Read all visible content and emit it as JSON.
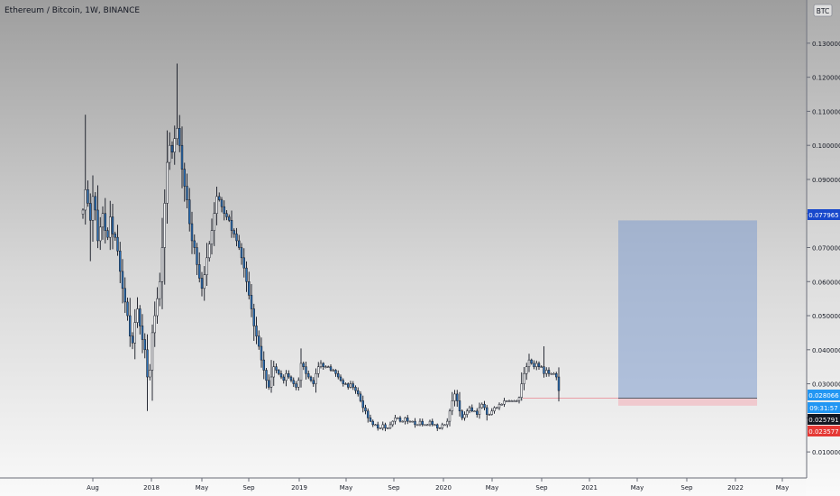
{
  "header": {
    "symbol": "Ethereum / Bitcoin, 1W, BINANCE",
    "currency_badge": "BTC"
  },
  "chart_data": {
    "type": "candlestick",
    "title": "Ethereum / Bitcoin, 1W, BINANCE",
    "ylim": [
      0.005,
      0.135
    ],
    "grid": false,
    "y_ticks": [
      "0.130000",
      "0.120000",
      "0.110000",
      "0.100000",
      "0.090000",
      "0.080000",
      "0.070000",
      "0.060000",
      "0.050000",
      "0.040000",
      "0.030000",
      "0.020000",
      "0.010000"
    ],
    "x_ticks": [
      "Aug",
      "2018",
      "May",
      "Sep",
      "2019",
      "May",
      "Sep",
      "2020",
      "May",
      "Sep",
      "2021",
      "May",
      "Sep",
      "2022",
      "May"
    ],
    "price_labels": [
      {
        "value": 0.077965,
        "text": "0.077965",
        "color": "#1848cc"
      },
      {
        "value": 0.028066,
        "text": "0.028066",
        "color": "#2196f3"
      },
      {
        "text": "09:31:57",
        "color": "#2196f3"
      },
      {
        "value": 0.025791,
        "text": "0.025791",
        "color": "#131722"
      },
      {
        "value": 0.023577,
        "text": "0.023577",
        "color": "#e53935"
      }
    ],
    "position_tool": {
      "entry": 0.025791,
      "target": 0.077965,
      "stop": 0.023577,
      "profit_color": "#7f9ccd",
      "loss_color": "#f2b7bf"
    },
    "colors": {
      "up": "#ffffff",
      "down": "#2a6fb5",
      "wick": "#131722"
    },
    "close_series": [
      0.081,
      0.087,
      0.083,
      0.078,
      0.085,
      0.081,
      0.072,
      0.076,
      0.08,
      0.075,
      0.073,
      0.079,
      0.074,
      0.073,
      0.069,
      0.063,
      0.058,
      0.054,
      0.05,
      0.044,
      0.042,
      0.048,
      0.052,
      0.047,
      0.043,
      0.04,
      0.032,
      0.034,
      0.045,
      0.05,
      0.055,
      0.06,
      0.07,
      0.083,
      0.095,
      0.1,
      0.098,
      0.102,
      0.105,
      0.1,
      0.093,
      0.088,
      0.084,
      0.077,
      0.072,
      0.07,
      0.065,
      0.061,
      0.058,
      0.062,
      0.067,
      0.071,
      0.075,
      0.08,
      0.085,
      0.084,
      0.082,
      0.08,
      0.079,
      0.078,
      0.075,
      0.074,
      0.072,
      0.07,
      0.067,
      0.064,
      0.06,
      0.056,
      0.052,
      0.047,
      0.044,
      0.041,
      0.037,
      0.034,
      0.031,
      0.029,
      0.032,
      0.035,
      0.034,
      0.033,
      0.032,
      0.031,
      0.033,
      0.032,
      0.031,
      0.03,
      0.029,
      0.031,
      0.036,
      0.035,
      0.033,
      0.032,
      0.031,
      0.03,
      0.033,
      0.035,
      0.036,
      0.035,
      0.035,
      0.035,
      0.034,
      0.034,
      0.033,
      0.032,
      0.031,
      0.03,
      0.03,
      0.029,
      0.03,
      0.029,
      0.028,
      0.027,
      0.025,
      0.023,
      0.022,
      0.02,
      0.019,
      0.018,
      0.018,
      0.017,
      0.017,
      0.018,
      0.017,
      0.017,
      0.018,
      0.019,
      0.02,
      0.02,
      0.019,
      0.019,
      0.02,
      0.019,
      0.019,
      0.019,
      0.018,
      0.018,
      0.019,
      0.018,
      0.018,
      0.018,
      0.019,
      0.018,
      0.018,
      0.017,
      0.017,
      0.018,
      0.018,
      0.019,
      0.022,
      0.025,
      0.027,
      0.025,
      0.022,
      0.02,
      0.021,
      0.022,
      0.023,
      0.022,
      0.022,
      0.021,
      0.023,
      0.024,
      0.023,
      0.021,
      0.021,
      0.022,
      0.023,
      0.023,
      0.024,
      0.024,
      0.025,
      0.025,
      0.025,
      0.025,
      0.025,
      0.025,
      0.026,
      0.03,
      0.033,
      0.035,
      0.037,
      0.036,
      0.035,
      0.036,
      0.035,
      0.035,
      0.033,
      0.034,
      0.033,
      0.033,
      0.033,
      0.032,
      0.028
    ]
  }
}
